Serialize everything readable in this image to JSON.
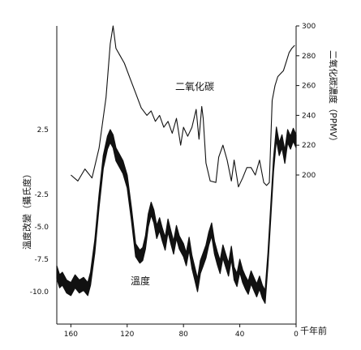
{
  "chart_data": {
    "type": "line",
    "x_axis": {
      "label": "千年前",
      "ticks": [
        160,
        120,
        80,
        40,
        0
      ],
      "range": [
        170,
        0
      ],
      "reversed": true
    },
    "y_left": {
      "label": "溫度改變（攝氏度）",
      "ticks": [
        2.5,
        -2.5,
        -5.0,
        -7.5,
        -10.0
      ],
      "tick_labels": [
        "2.5",
        "-2.5",
        "-5.0",
        "-7.5",
        "-10.0"
      ],
      "range": [
        -12.5,
        10.5
      ]
    },
    "y_right": {
      "label": "二氧化碳濃度（PPMV）",
      "ticks": [
        300,
        280,
        260,
        240,
        220,
        200
      ],
      "range": [
        100,
        300
      ]
    },
    "series": [
      {
        "name": "二氧化碳",
        "axis": "right",
        "x": [
          160,
          155,
          150,
          145,
          140,
          135,
          132,
          130,
          128,
          125,
          122,
          118,
          114,
          110,
          106,
          103,
          100,
          97,
          94,
          91,
          88,
          85,
          82,
          80,
          77,
          74,
          71,
          69,
          67,
          66,
          64,
          61,
          57,
          55,
          52,
          49,
          46,
          44,
          41,
          38,
          35,
          32,
          29,
          26,
          23,
          21,
          19,
          17,
          15,
          13,
          11,
          9,
          7,
          5,
          3,
          1
        ],
        "values": [
          200,
          196,
          204,
          198,
          218,
          252,
          288,
          300,
          285,
          280,
          275,
          265,
          255,
          245,
          240,
          243,
          236,
          240,
          232,
          236,
          228,
          238,
          220,
          232,
          226,
          232,
          244,
          224,
          246,
          238,
          208,
          196,
          195,
          212,
          220,
          210,
          196,
          210,
          192,
          198,
          205,
          205,
          200,
          210,
          195,
          193,
          195,
          250,
          260,
          266,
          268,
          270,
          276,
          282,
          285,
          287
        ]
      },
      {
        "name": "溫度",
        "axis": "left",
        "x": [
          170,
          168,
          166,
          163,
          160,
          157,
          154,
          151,
          148,
          146,
          143,
          140,
          137,
          134,
          132,
          130,
          128,
          126,
          123,
          120,
          117,
          114,
          111,
          109,
          107,
          105,
          103,
          101,
          99,
          97,
          95,
          93,
          91,
          89,
          87,
          85,
          83,
          80,
          78,
          76,
          74,
          72,
          70,
          68,
          66,
          64,
          62,
          60,
          58,
          56,
          54,
          52,
          50,
          48,
          46,
          44,
          42,
          40,
          38,
          36,
          34,
          32,
          30,
          28,
          26,
          24,
          22,
          20,
          18,
          16,
          14,
          12,
          10,
          8,
          6,
          4,
          2,
          0
        ],
        "values": [
          -8.5,
          -9.2,
          -9.0,
          -9.6,
          -9.8,
          -9.2,
          -9.6,
          -9.4,
          -9.8,
          -9.0,
          -6.5,
          -3.0,
          0.0,
          1.5,
          2.0,
          1.6,
          0.6,
          0.2,
          -0.4,
          -1.5,
          -4.0,
          -6.8,
          -7.3,
          -7.1,
          -6.2,
          -4.5,
          -3.6,
          -4.2,
          -5.4,
          -4.8,
          -5.6,
          -6.3,
          -4.9,
          -5.8,
          -6.6,
          -5.4,
          -6.2,
          -6.8,
          -7.5,
          -6.3,
          -7.7,
          -8.6,
          -9.5,
          -8.1,
          -7.5,
          -6.9,
          -5.9,
          -5.2,
          -6.6,
          -7.4,
          -8.1,
          -6.9,
          -7.6,
          -8.3,
          -7.0,
          -8.6,
          -9.1,
          -8.0,
          -8.8,
          -9.3,
          -9.7,
          -8.9,
          -9.4,
          -9.9,
          -9.3,
          -10.0,
          -10.4,
          -7.5,
          -3.8,
          -0.2,
          2.2,
          1.0,
          1.6,
          0.4,
          2.0,
          1.5,
          2.1,
          1.6
        ],
        "band_half_width": 0.5
      }
    ],
    "annotations": [
      {
        "text": "二氧化碳",
        "series": "二氧化碳"
      },
      {
        "text": "溫度",
        "series": "溫度"
      }
    ],
    "grid": false,
    "legend": "none"
  }
}
